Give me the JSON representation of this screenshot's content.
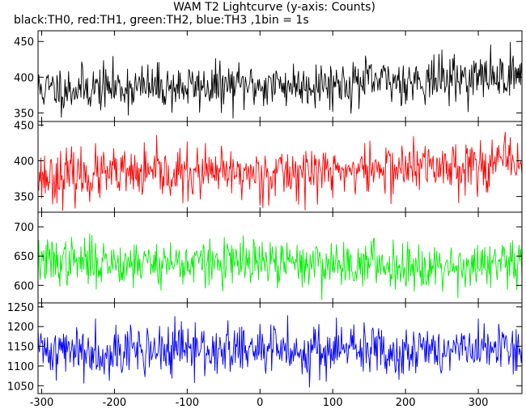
{
  "chart_data": {
    "type": "line",
    "title": "WAM T2 Lightcurve (y-axis: Counts)",
    "subtitle": "black:TH0, red:TH1, green:TH2, blue:TH3 ,1bin = 1s",
    "xlim": [
      -305,
      360
    ],
    "x_ticks": [
      -300,
      -200,
      -100,
      0,
      100,
      200,
      300
    ],
    "grid": false,
    "panels": [
      {
        "name": "TH0",
        "color": "#000000",
        "ylim": [
          338,
          465
        ],
        "y_ticks": [
          350,
          400,
          450
        ],
        "level_at_x": {
          "x": [
            -305,
            -200,
            -100,
            0,
            100,
            200,
            300,
            360
          ],
          "y": [
            383,
            386,
            386,
            388,
            391,
            395,
            400,
            404
          ]
        },
        "noise_sd": 16,
        "values": [],
        "seed": 11
      },
      {
        "name": "TH1",
        "color": "#ff0000",
        "ylim": [
          328,
          455
        ],
        "y_ticks": [
          350,
          400,
          450
        ],
        "level_at_x": {
          "x": [
            -305,
            -200,
            -100,
            0,
            100,
            200,
            300,
            360
          ],
          "y": [
            378,
            380,
            381,
            382,
            385,
            390,
            395,
            400
          ]
        },
        "noise_sd": 18,
        "values": [],
        "seed": 23
      },
      {
        "name": "TH2",
        "color": "#00ee00",
        "ylim": [
          570,
          725
        ],
        "y_ticks": [
          600,
          650,
          700
        ],
        "level_at_x": {
          "x": [
            -305,
            -200,
            -100,
            0,
            100,
            200,
            300,
            360
          ],
          "y": [
            640,
            640,
            638,
            637,
            637,
            635,
            634,
            633
          ]
        },
        "noise_sd": 20,
        "values": [],
        "seed": 37
      },
      {
        "name": "TH3",
        "color": "#0000ff",
        "ylim": [
          1030,
          1260
        ],
        "y_ticks": [
          1050,
          1100,
          1150,
          1200,
          1250
        ],
        "level_at_x": {
          "x": [
            -305,
            -200,
            -100,
            0,
            100,
            200,
            300,
            360
          ],
          "y": [
            1140,
            1140,
            1140,
            1140,
            1140,
            1140,
            1140,
            1140
          ]
        },
        "noise_sd": 33,
        "values": [],
        "seed": 41
      }
    ]
  }
}
